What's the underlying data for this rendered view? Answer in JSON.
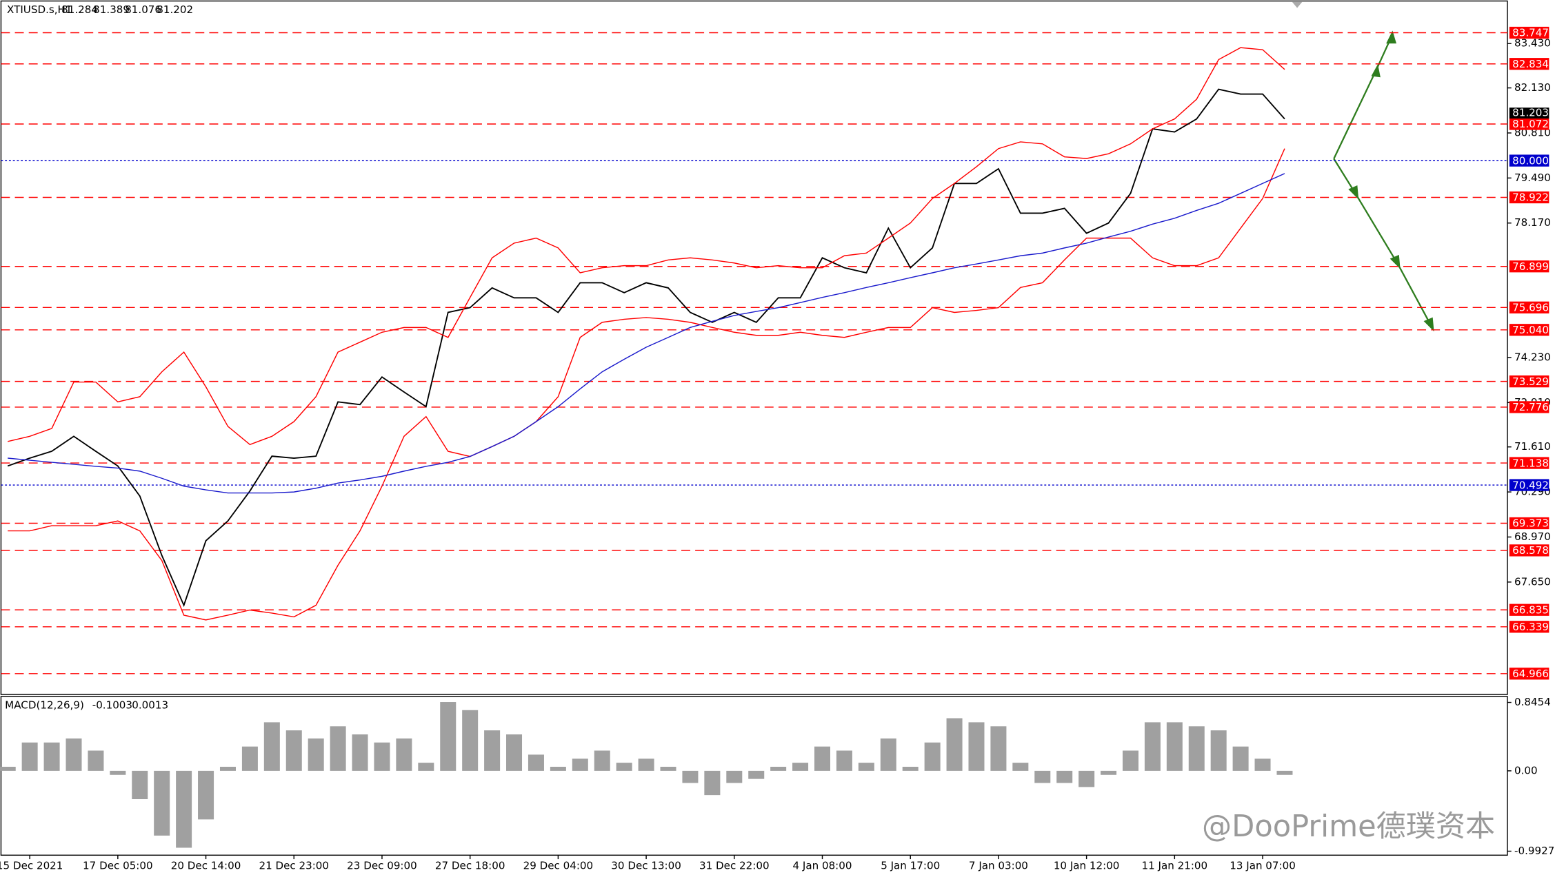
{
  "chart_data": [
    {
      "type": "line",
      "title": "XTIUSD.s,H1",
      "quote": [
        81.284,
        81.389,
        81.076,
        81.202
      ],
      "categories": [
        null,
        "15 Dec 2021",
        null,
        null,
        null,
        "17 Dec 05:00",
        null,
        null,
        null,
        "20 Dec 14:00",
        null,
        null,
        null,
        "21 Dec 23:00",
        null,
        null,
        null,
        "23 Dec 09:00",
        null,
        null,
        null,
        "27 Dec 18:00",
        null,
        null,
        null,
        "29 Dec 04:00",
        null,
        null,
        null,
        "30 Dec 13:00",
        null,
        null,
        null,
        "31 Dec 22:00",
        null,
        null,
        null,
        "4 Jan 08:00",
        null,
        null,
        null,
        "5 Jan 17:00",
        null,
        null,
        null,
        "7 Jan 03:00",
        null,
        null,
        null,
        "10 Jan 12:00",
        null,
        null,
        null,
        "11 Jan 21:00",
        null,
        null,
        null,
        "13 Jan 07:00",
        null
      ],
      "series": [
        {
          "color": "#000000",
          "values": [
            71.05,
            71.28,
            71.48,
            71.92,
            71.48,
            71.05,
            70.17,
            68.43,
            66.97,
            68.86,
            69.44,
            70.32,
            71.34,
            71.28,
            71.34,
            72.93,
            72.85,
            73.66,
            73.22,
            72.79,
            75.55,
            75.69,
            76.27,
            75.98,
            75.98,
            75.55,
            76.42,
            76.42,
            76.13,
            76.42,
            76.27,
            75.55,
            75.26,
            75.55,
            75.26,
            75.98,
            75.98,
            77.15,
            76.86,
            76.71,
            78.02,
            76.86,
            77.44,
            79.33,
            79.33,
            79.76,
            78.46,
            78.46,
            78.6,
            77.87,
            78.17,
            79.04,
            80.93,
            80.84,
            81.22,
            82.09,
            81.95,
            81.95,
            81.22
          ]
        },
        {
          "color": "#ff0000",
          "values": [
            71.77,
            71.92,
            72.15,
            73.51,
            73.51,
            72.93,
            73.08,
            73.81,
            74.39,
            73.37,
            72.21,
            71.68,
            71.92,
            72.35,
            73.08,
            74.39,
            74.68,
            74.97,
            75.11,
            75.11,
            74.82,
            75.99,
            77.15,
            77.58,
            77.73,
            77.44,
            76.71,
            76.86,
            76.92,
            76.92,
            77.09,
            77.15,
            77.09,
            77.0,
            76.86,
            76.92,
            76.86,
            76.86,
            77.21,
            77.29,
            77.73,
            78.17,
            78.89,
            79.33,
            79.82,
            80.35,
            80.55,
            80.49,
            80.11,
            80.06,
            80.2,
            80.49,
            80.93,
            81.22,
            81.8,
            82.96,
            83.31,
            83.25,
            82.67
          ]
        },
        {
          "color": "#ff0000",
          "values": [
            69.15,
            69.15,
            69.3,
            69.3,
            69.3,
            69.44,
            69.15,
            68.28,
            66.68,
            66.54,
            66.68,
            66.83,
            66.74,
            66.63,
            66.97,
            68.14,
            69.15,
            70.46,
            71.92,
            72.5,
            71.48,
            71.33,
            71.62,
            71.92,
            72.35,
            73.08,
            74.82,
            75.26,
            75.35,
            75.4,
            75.35,
            75.26,
            75.11,
            74.97,
            74.88,
            74.88,
            74.97,
            74.88,
            74.82,
            74.97,
            75.11,
            75.11,
            75.69,
            75.55,
            75.61,
            75.69,
            76.28,
            76.42,
            77.09,
            77.73,
            77.73,
            77.73,
            77.15,
            76.92,
            76.92,
            77.15,
            78.02,
            78.89,
            80.35
          ]
        },
        {
          "color": "#1a1acc",
          "values": [
            71.28,
            71.22,
            71.16,
            71.1,
            71.04,
            70.99,
            70.9,
            70.69,
            70.46,
            70.35,
            70.26,
            70.26,
            70.26,
            70.29,
            70.4,
            70.55,
            70.64,
            70.75,
            70.9,
            71.04,
            71.16,
            71.33,
            71.62,
            71.92,
            72.35,
            72.79,
            73.31,
            73.81,
            74.18,
            74.53,
            74.82,
            75.11,
            75.29,
            75.46,
            75.58,
            75.69,
            75.84,
            75.99,
            76.13,
            76.28,
            76.42,
            76.57,
            76.71,
            76.86,
            76.97,
            77.09,
            77.21,
            77.29,
            77.44,
            77.58,
            77.76,
            77.93,
            78.14,
            78.31,
            78.54,
            78.75,
            79.04,
            79.33,
            79.62
          ]
        }
      ],
      "ylim": [
        64.356,
        84.706
      ],
      "yticks": [
        {
          "value": 83.43,
          "label": "83.430"
        },
        {
          "value": 82.13,
          "label": "82.130"
        },
        {
          "value": 80.81,
          "label": "80.810"
        },
        {
          "value": 79.49,
          "label": "79.490"
        },
        {
          "value": 78.17,
          "label": "78.170"
        },
        {
          "value": 74.23,
          "label": "74.230"
        },
        {
          "value": 72.91,
          "label": "72.910"
        },
        {
          "value": 71.61,
          "label": "71.610"
        },
        {
          "value": 70.29,
          "label": "70.290"
        },
        {
          "value": 68.97,
          "label": "68.970"
        },
        {
          "value": 67.65,
          "label": "67.650"
        }
      ],
      "levels": [
        83.747,
        82.834,
        81.072,
        78.922,
        76.899,
        75.696,
        {
          "value": 75.04,
          "label": "75.040"
        },
        73.529,
        72.776,
        71.138,
        69.373,
        68.578,
        66.835,
        66.339,
        64.966
      ],
      "level_color": "#ff0000",
      "blue_levels": [
        {
          "value": 80,
          "label": "80.000"
        },
        70.492
      ],
      "blue_level_color": "#0000cc",
      "bid": 81.203
    },
    {
      "type": "bar",
      "title": "MACD(12,26,9)",
      "readings": [
        -0.1003,
        0.0013
      ],
      "values": [
        0.05,
        0.35,
        0.35,
        0.4,
        0.25,
        -0.05,
        -0.35,
        -0.8,
        -0.95,
        -0.6,
        0.05,
        0.3,
        0.6,
        0.5,
        0.4,
        0.55,
        0.45,
        0.35,
        0.4,
        0.1,
        0.85,
        0.75,
        0.5,
        0.45,
        0.2,
        0.05,
        0.15,
        0.25,
        0.1,
        0.15,
        0.05,
        -0.15,
        -0.3,
        -0.15,
        -0.1,
        0.05,
        0.1,
        0.3,
        0.25,
        0.1,
        0.4,
        0.05,
        0.35,
        0.65,
        0.6,
        0.55,
        0.1,
        -0.15,
        -0.15,
        -0.2,
        -0.05,
        0.25,
        0.6,
        0.6,
        0.55,
        0.5,
        0.3,
        0.15,
        -0.05
      ],
      "color": "#a0a0a0",
      "ylim": [
        -1.042,
        0.919
      ],
      "yticks": [
        0.8454,
        {
          "value": 0,
          "label": "0.00"
        },
        -0.9927
      ]
    }
  ],
  "watermark": "@DooPrime德璞资本"
}
